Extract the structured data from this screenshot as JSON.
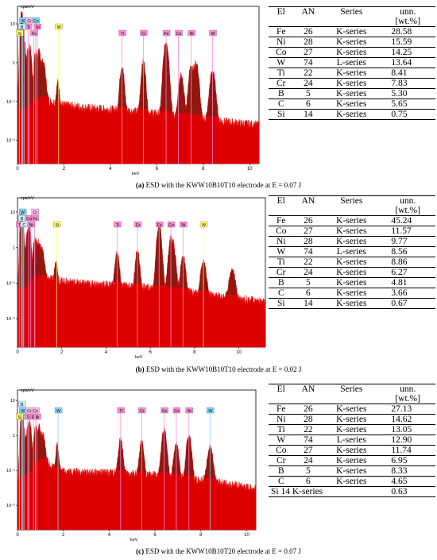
{
  "colors": {
    "fill": "#dd0000",
    "peak": "#8b1a10",
    "frame": "#000000"
  },
  "chart_data": [
    {
      "type": "area",
      "ylabel": "cps/eV",
      "xlabel": "keV",
      "xlim": [
        0,
        10.4
      ],
      "ylim_log": [
        -2.6,
        1.45
      ],
      "x_ticks": [
        "0",
        "2",
        "4",
        "6",
        "8",
        "10"
      ],
      "y_ticks": [
        "10",
        "1",
        "10⁻¹",
        "10⁻²",
        "10⁻³"
      ],
      "background": [
        [
          0.1,
          0.05
        ],
        [
          0.5,
          0.07
        ],
        [
          1.0,
          0.12
        ],
        [
          1.8,
          0.085
        ],
        [
          3.0,
          0.07
        ],
        [
          4.5,
          0.06
        ],
        [
          6.0,
          0.05
        ],
        [
          7.5,
          0.04
        ],
        [
          9.0,
          0.03
        ],
        [
          10.4,
          0.025
        ]
      ],
      "peaks": [
        {
          "x": 0.18,
          "y": 20,
          "w": 0.05
        },
        {
          "x": 0.28,
          "y": 4,
          "w": 0.05
        },
        {
          "x": 0.45,
          "y": 2,
          "w": 0.05
        },
        {
          "x": 0.55,
          "y": 2,
          "w": 0.05
        },
        {
          "x": 0.78,
          "y": 1.6,
          "w": 0.06
        },
        {
          "x": 0.93,
          "y": 1.6,
          "w": 0.06
        },
        {
          "x": 1.1,
          "y": 0.9,
          "w": 0.08
        },
        {
          "x": 1.74,
          "y": 0.22,
          "w": 0.05
        },
        {
          "x": 4.5,
          "y": 0.7,
          "w": 0.07
        },
        {
          "x": 5.42,
          "y": 1.0,
          "w": 0.07
        },
        {
          "x": 6.4,
          "y": 3.3,
          "w": 0.08
        },
        {
          "x": 7.05,
          "y": 0.4,
          "w": 0.08
        },
        {
          "x": 7.48,
          "y": 0.8,
          "w": 0.08
        },
        {
          "x": 7.7,
          "y": 0.9,
          "w": 0.08
        },
        {
          "x": 8.4,
          "y": 0.55,
          "w": 0.09
        }
      ],
      "markers": [
        {
          "label": "W",
          "x": 0.22,
          "row": 0,
          "color": "#7fd7ff"
        },
        {
          "label": "Cr",
          "x": 0.5,
          "row": 0,
          "color": "#ffb8e8"
        },
        {
          "label": "Co",
          "x": 0.78,
          "row": 0,
          "color": "#7fd7ff"
        },
        {
          "label": "C",
          "x": 0.28,
          "row": 1,
          "color": "#c8f0ff"
        },
        {
          "label": "Ti",
          "x": 0.45,
          "row": 1,
          "color": "#ff8ad8"
        },
        {
          "label": "Ni",
          "x": 0.85,
          "row": 1,
          "color": "#ff8ad8"
        },
        {
          "label": "Si",
          "x": 0.08,
          "row": 2,
          "color": "#ffff66"
        },
        {
          "label": "Fe",
          "x": 0.7,
          "row": 2,
          "color": "#ff8ad8"
        },
        {
          "label": "B",
          "x": 0.18,
          "row": 1,
          "color": "#c8f0ff"
        },
        {
          "label": "W",
          "x": 1.77,
          "row": 1,
          "color": "#ffff66"
        },
        {
          "label": "Ti",
          "x": 4.5,
          "row": 2,
          "color": "#ff8ad8"
        },
        {
          "label": "Cr",
          "x": 5.42,
          "row": 2,
          "color": "#ff8ad8"
        },
        {
          "label": "Fe",
          "x": 6.4,
          "row": 2,
          "color": "#ff8ad8"
        },
        {
          "label": "Co",
          "x": 6.93,
          "row": 2,
          "color": "#ff8ad8"
        },
        {
          "label": "Ni",
          "x": 7.48,
          "row": 2,
          "color": "#ff8ad8"
        },
        {
          "label": "W",
          "x": 8.4,
          "row": 2,
          "color": "#ff8ad8"
        }
      ]
    },
    {
      "type": "area",
      "ylabel": "cps/eV",
      "xlabel": "keV",
      "xlim": [
        0,
        11.2
      ],
      "ylim_log": [
        -2.8,
        1.4
      ],
      "x_ticks": [
        "0",
        "2",
        "4",
        "6",
        "8",
        "10"
      ],
      "y_ticks": [
        "10",
        "1",
        "10⁻¹",
        "10⁻²"
      ],
      "background": [
        [
          0.1,
          0.05
        ],
        [
          0.5,
          0.1
        ],
        [
          1.0,
          0.15
        ],
        [
          1.8,
          0.12
        ],
        [
          3.0,
          0.1
        ],
        [
          4.5,
          0.09
        ],
        [
          6.0,
          0.075
        ],
        [
          7.5,
          0.06
        ],
        [
          9.0,
          0.045
        ],
        [
          11.2,
          0.03
        ]
      ],
      "peaks": [
        {
          "x": 0.18,
          "y": 10,
          "w": 0.05
        },
        {
          "x": 0.28,
          "y": 2,
          "w": 0.05
        },
        {
          "x": 0.45,
          "y": 2.5,
          "w": 0.05
        },
        {
          "x": 0.55,
          "y": 3,
          "w": 0.05
        },
        {
          "x": 0.78,
          "y": 1.5,
          "w": 0.06
        },
        {
          "x": 0.93,
          "y": 1.2,
          "w": 0.06
        },
        {
          "x": 1.1,
          "y": 0.8,
          "w": 0.08
        },
        {
          "x": 1.74,
          "y": 0.3,
          "w": 0.05
        },
        {
          "x": 4.5,
          "y": 0.6,
          "w": 0.07
        },
        {
          "x": 5.42,
          "y": 0.7,
          "w": 0.07
        },
        {
          "x": 6.4,
          "y": 4.0,
          "w": 0.08
        },
        {
          "x": 6.93,
          "y": 1.6,
          "w": 0.08
        },
        {
          "x": 7.05,
          "y": 0.8,
          "w": 0.08
        },
        {
          "x": 7.48,
          "y": 0.5,
          "w": 0.08
        },
        {
          "x": 8.4,
          "y": 0.35,
          "w": 0.09
        },
        {
          "x": 9.7,
          "y": 0.2,
          "w": 0.1
        }
      ],
      "markers": [
        {
          "label": "W",
          "x": 0.22,
          "row": 0,
          "color": "#7fd7ff"
        },
        {
          "label": "Cr",
          "x": 0.78,
          "row": 0,
          "color": "#ffb8e8"
        },
        {
          "label": "B",
          "x": 0.18,
          "row": 1,
          "color": "#c8f0ff"
        },
        {
          "label": "Co",
          "x": 0.5,
          "row": 1,
          "color": "#ff8ad8"
        },
        {
          "label": "Fe",
          "x": 0.78,
          "row": 1,
          "color": "#ff8ad8"
        },
        {
          "label": "Ti",
          "x": 0.08,
          "row": 2,
          "color": "#ff8ad8"
        },
        {
          "label": "Ni",
          "x": 0.6,
          "row": 2,
          "color": "#ff8ad8"
        },
        {
          "label": "C",
          "x": 0.28,
          "row": 2,
          "color": "#c8f0ff"
        },
        {
          "label": "Si",
          "x": 1.77,
          "row": 2,
          "color": "#ffff66"
        },
        {
          "label": "Ti",
          "x": 4.5,
          "row": 2,
          "color": "#ff8ad8"
        },
        {
          "label": "Cr",
          "x": 5.42,
          "row": 2,
          "color": "#ff8ad8"
        },
        {
          "label": "Fe",
          "x": 6.4,
          "row": 2,
          "color": "#ff8ad8"
        },
        {
          "label": "Co",
          "x": 6.93,
          "row": 2,
          "color": "#ff8ad8"
        },
        {
          "label": "Ni",
          "x": 7.48,
          "row": 2,
          "color": "#ff8ad8"
        },
        {
          "label": "W",
          "x": 8.4,
          "row": 2,
          "color": "#ffff66"
        }
      ]
    },
    {
      "type": "area",
      "ylabel": "cps/eV",
      "xlabel": "keV",
      "xlim": [
        0,
        10.4
      ],
      "ylim_log": [
        -2.7,
        1.3
      ],
      "x_ticks": [
        "0",
        "2",
        "4",
        "6",
        "8",
        "10"
      ],
      "y_ticks": [
        "10",
        "1",
        "10⁻¹",
        "10⁻²"
      ],
      "background": [
        [
          0.1,
          0.05
        ],
        [
          0.5,
          0.08
        ],
        [
          1.0,
          0.2
        ],
        [
          1.8,
          0.1
        ],
        [
          3.0,
          0.09
        ],
        [
          4.5,
          0.085
        ],
        [
          6.0,
          0.075
        ],
        [
          7.5,
          0.06
        ],
        [
          9.0,
          0.045
        ],
        [
          10.4,
          0.03
        ]
      ],
      "peaks": [
        {
          "x": 0.18,
          "y": 3.5,
          "w": 0.05
        },
        {
          "x": 0.28,
          "y": 1.5,
          "w": 0.05
        },
        {
          "x": 0.45,
          "y": 1.5,
          "w": 0.05
        },
        {
          "x": 0.55,
          "y": 2,
          "w": 0.05
        },
        {
          "x": 0.78,
          "y": 1.4,
          "w": 0.06
        },
        {
          "x": 0.93,
          "y": 1.5,
          "w": 0.06
        },
        {
          "x": 1.1,
          "y": 0.8,
          "w": 0.08
        },
        {
          "x": 1.74,
          "y": 0.45,
          "w": 0.05
        },
        {
          "x": 4.5,
          "y": 0.7,
          "w": 0.07
        },
        {
          "x": 5.42,
          "y": 0.55,
          "w": 0.07
        },
        {
          "x": 6.4,
          "y": 1.3,
          "w": 0.08
        },
        {
          "x": 6.93,
          "y": 0.5,
          "w": 0.08
        },
        {
          "x": 7.48,
          "y": 0.9,
          "w": 0.08
        },
        {
          "x": 8.4,
          "y": 0.4,
          "w": 0.09
        }
      ],
      "markers": [
        {
          "label": "B",
          "x": 0.18,
          "row": 0,
          "color": "#c8f0ff"
        },
        {
          "label": "W",
          "x": 0.22,
          "row": 1,
          "color": "#7fd7ff"
        },
        {
          "label": "Cr",
          "x": 0.5,
          "row": 1,
          "color": "#ffb8e8"
        },
        {
          "label": "Co",
          "x": 0.78,
          "row": 1,
          "color": "#ffb8e8"
        },
        {
          "label": "C",
          "x": 0.28,
          "row": 2,
          "color": "#c8f0ff"
        },
        {
          "label": "Ti",
          "x": 0.45,
          "row": 2,
          "color": "#ff8ad8"
        },
        {
          "label": "Fe",
          "x": 0.7,
          "row": 2,
          "color": "#ff8ad8"
        },
        {
          "label": "Si",
          "x": 0.08,
          "row": 2,
          "color": "#ffff66"
        },
        {
          "label": "Ni",
          "x": 0.85,
          "row": 2,
          "color": "#ff8ad8"
        },
        {
          "label": "W",
          "x": 1.77,
          "row": 1,
          "color": "#7fd7ff"
        },
        {
          "label": "Ti",
          "x": 4.5,
          "row": 1,
          "color": "#ff8ad8"
        },
        {
          "label": "Cr",
          "x": 5.42,
          "row": 1,
          "color": "#ff8ad8"
        },
        {
          "label": "Fe",
          "x": 6.4,
          "row": 1,
          "color": "#ff8ad8"
        },
        {
          "label": "Co",
          "x": 6.93,
          "row": 1,
          "color": "#ff8ad8"
        },
        {
          "label": "Ni",
          "x": 7.48,
          "row": 1,
          "color": "#ff8ad8"
        },
        {
          "label": "W",
          "x": 8.4,
          "row": 1,
          "color": "#7fd7ff"
        }
      ]
    }
  ],
  "tables": [
    {
      "headers": {
        "el": "El",
        "an": "AN",
        "series": "Series",
        "unn1": "unn.",
        "unn2": "[wt.%]"
      },
      "rows": [
        {
          "el": "Fe",
          "an": "26",
          "series": "K-series",
          "val": "28.58"
        },
        {
          "el": "Ni",
          "an": "28",
          "series": "K-series",
          "val": "15.59"
        },
        {
          "el": "Co",
          "an": "27",
          "series": "K-series",
          "val": "14.25"
        },
        {
          "el": "W",
          "an": "74",
          "series": "L-series",
          "val": "13.64"
        },
        {
          "el": "Ti",
          "an": "22",
          "series": "K-series",
          "val": "8.41"
        },
        {
          "el": "Cr",
          "an": "24",
          "series": "K-series",
          "val": "7.83"
        },
        {
          "el": "B",
          "an": "5",
          "series": "K-series",
          "val": "5.30"
        },
        {
          "el": "C",
          "an": "6",
          "series": "K-series",
          "val": "5.65"
        },
        {
          "el": "Si",
          "an": "14",
          "series": "K-series",
          "val": "0.75"
        }
      ]
    },
    {
      "headers": {
        "el": "El",
        "an": "AN",
        "series": "Series",
        "unn1": "unn.",
        "unn2": "[wt.%]"
      },
      "rows": [
        {
          "el": "Fe",
          "an": "26",
          "series": "K-series",
          "val": "45.24"
        },
        {
          "el": "Co",
          "an": "27",
          "series": "K-series",
          "val": "11.57"
        },
        {
          "el": "Ni",
          "an": "28",
          "series": "K-series",
          "val": "9.77"
        },
        {
          "el": "W",
          "an": "74",
          "series": "L-series",
          "val": "8.56"
        },
        {
          "el": "Ti",
          "an": "22",
          "series": "K-series",
          "val": "8.86"
        },
        {
          "el": "Cr",
          "an": "24",
          "series": "K-series",
          "val": "6.27"
        },
        {
          "el": "B",
          "an": "5",
          "series": "K-series",
          "val": "4.81"
        },
        {
          "el": "C",
          "an": "6",
          "series": "K-series",
          "val": "3.66"
        },
        {
          "el": "Si",
          "an": "14",
          "series": "K-series",
          "val": "0.67"
        }
      ]
    },
    {
      "headers": {
        "el": "El",
        "an": "AN",
        "series": "Series",
        "unn1": "unn.",
        "unn2": "[wt.%]"
      },
      "rows": [
        {
          "el": "Fe",
          "an": "26",
          "series": "K-series",
          "val": "27.13"
        },
        {
          "el": "Ni",
          "an": "28",
          "series": "K-series",
          "val": "14.62"
        },
        {
          "el": "Ti",
          "an": "22",
          "series": "K-series",
          "val": "13.05"
        },
        {
          "el": "W",
          "an": "74",
          "series": "L-series",
          "val": "12.90"
        },
        {
          "el": "Co",
          "an": "27",
          "series": "K-series",
          "val": "11.74"
        },
        {
          "el": "Cr",
          "an": "24",
          "series": "K-series",
          "val": "6.95"
        },
        {
          "el": "B",
          "an": "5",
          "series": "K-series",
          "val": "8.33"
        },
        {
          "el": "C",
          "an": "6",
          "series": "K-series",
          "val": "4.65"
        },
        {
          "el": "Si",
          "an": "14",
          "series": "K-series",
          "val": "0.63",
          "merged": "Si 14 K-series"
        }
      ]
    }
  ],
  "captions": [
    {
      "label": "(a)",
      "text": " ESD with the KWW10B10T10 electrode at E = 0.07 J"
    },
    {
      "label": "(b)",
      "text": " ESD with the KWW10B10T10 electrode at E = 0.02 J"
    },
    {
      "label": "(c)",
      "text": " ESD with the KWW10B10T20 electrode at E = 0.07 J"
    }
  ]
}
